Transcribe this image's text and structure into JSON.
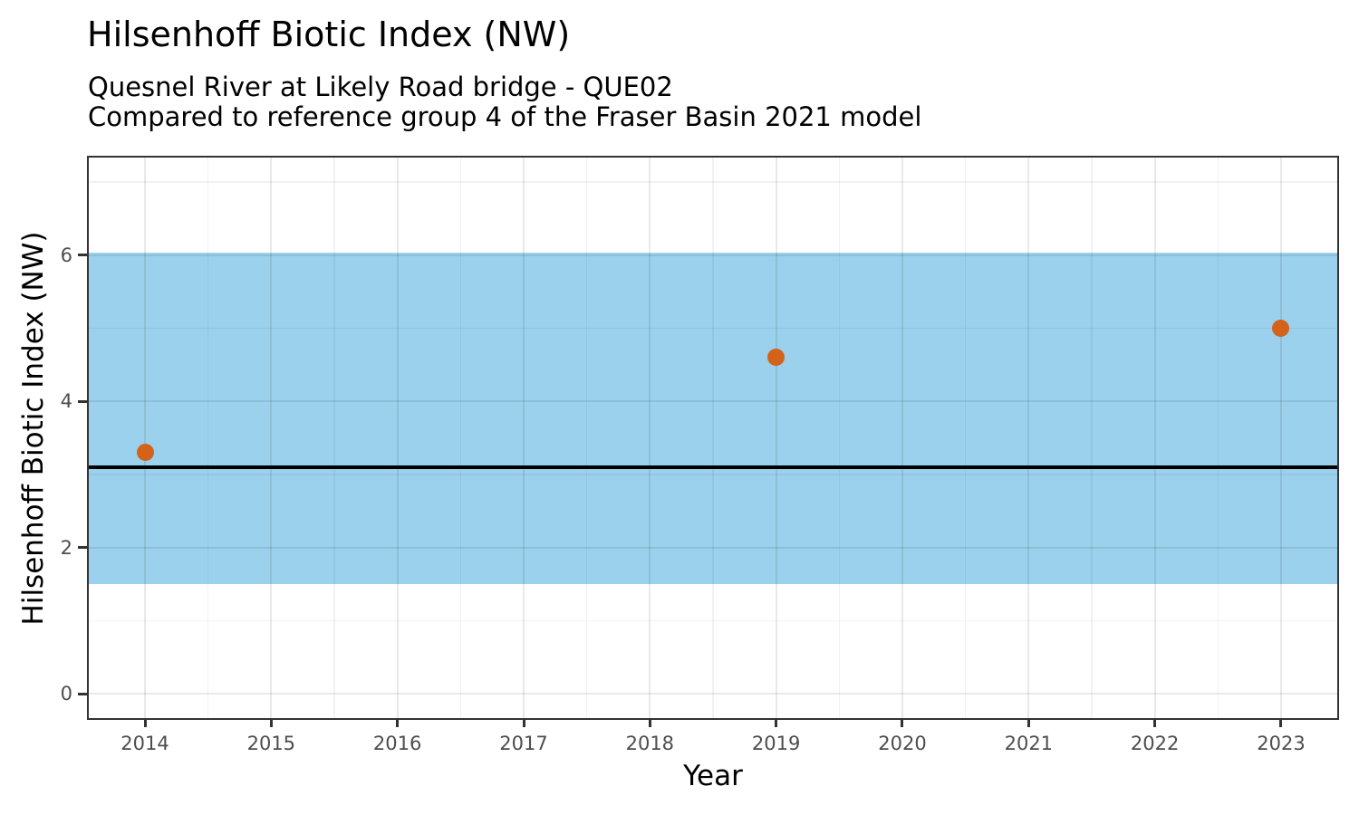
{
  "chart_data": {
    "type": "scatter",
    "title": "Hilsenhoff Biotic Index (NW)",
    "subtitle1": "Quesnel River at Likely Road bridge - QUE02",
    "subtitle2": "Compared to reference group 4 of the Fraser Basin 2021 model",
    "xlabel": "Year",
    "ylabel": "Hilsenhoff Biotic Index (NW)",
    "xlim": [
      2013.555,
      2023.445
    ],
    "ylim": [
      -0.334,
      7.336
    ],
    "x_ticks": [
      2014,
      2015,
      2016,
      2017,
      2018,
      2019,
      2020,
      2021,
      2022,
      2023
    ],
    "x_minor_ticks": [
      2014.5,
      2015.5,
      2016.5,
      2017.5,
      2018.5,
      2019.5,
      2020.5,
      2021.5,
      2022.5
    ],
    "y_ticks": [
      0,
      2,
      4,
      6
    ],
    "y_minor_ticks": [
      1,
      3,
      5,
      7
    ],
    "grid": true,
    "legend": "none",
    "reference_band": {
      "ymin": 1.5,
      "ymax": 6.03
    },
    "reference_line": {
      "y": 3.1
    },
    "series": [
      {
        "name": "Hilsenhoff Biotic Index (NW)",
        "points": [
          {
            "x": 2014,
            "y": 3.3
          },
          {
            "x": 2019,
            "y": 4.6
          },
          {
            "x": 2023,
            "y": 5.0
          }
        ]
      }
    ]
  },
  "colors": {
    "band_fill": "#9BD1EC",
    "point_fill": "#D4621A",
    "reference_line": "#000000",
    "axis_text": "#4D4D4D",
    "axis_title": "#000000",
    "panel_border": "#333333"
  }
}
